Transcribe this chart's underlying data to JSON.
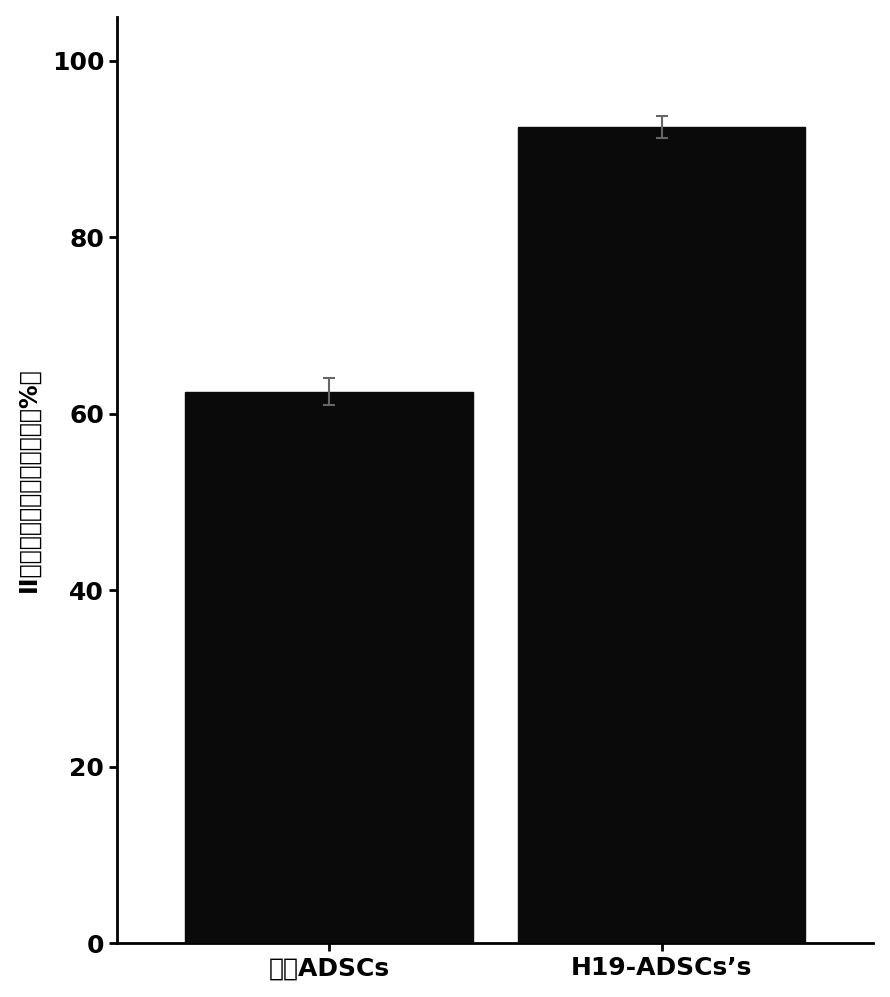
{
  "categories": [
    "对照ADSCs",
    "H19-ADSCs’s"
  ],
  "cat_labels": [
    "对照ADSCs",
    "H19-ADSCs’s"
  ],
  "values": [
    62.5,
    92.5
  ],
  "errors": [
    1.5,
    1.2
  ],
  "bar_color": "#0a0a0a",
  "bar_width": 0.38,
  "ylim": [
    0,
    105
  ],
  "yticks": [
    0,
    20,
    40,
    60,
    80,
    100
  ],
  "ylabel_parts": [
    "II型胶原阳性细胞所占比例（%）"
  ],
  "ylabel_fontsize": 17,
  "tick_fontsize": 18,
  "xlabel_fontsize": 18,
  "background_color": "#ffffff",
  "ecolor": "#666666",
  "capsize": 4,
  "x_positions": [
    0.28,
    0.72
  ]
}
